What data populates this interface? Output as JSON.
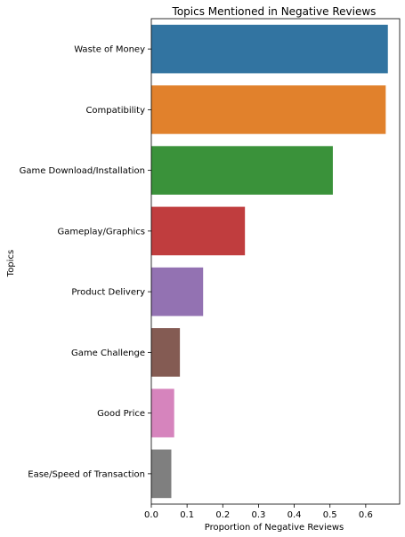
{
  "chart_data": {
    "type": "bar",
    "orientation": "horizontal",
    "title": "Topics Mentioned in Negative Reviews",
    "xlabel": "Proportion of Negative Reviews",
    "ylabel": "Topics",
    "xlim": [
      0,
      0.695
    ],
    "xticks": [
      "0.0",
      "0.1",
      "0.2",
      "0.3",
      "0.4",
      "0.5",
      "0.6"
    ],
    "grid": false,
    "categories": [
      "Waste of Money",
      "Compatibility",
      "Game Download/Installation",
      "Gameplay/Graphics",
      "Product Delivery",
      "Game Challenge",
      "Good Price",
      "Ease/Speed of Transaction"
    ],
    "values": [
      0.662,
      0.656,
      0.508,
      0.262,
      0.145,
      0.08,
      0.064,
      0.056
    ],
    "colors": [
      "#3274a1",
      "#e1812c",
      "#3a923a",
      "#c03d3e",
      "#9372b2",
      "#845b53",
      "#d684bd",
      "#7f7f7f"
    ]
  }
}
